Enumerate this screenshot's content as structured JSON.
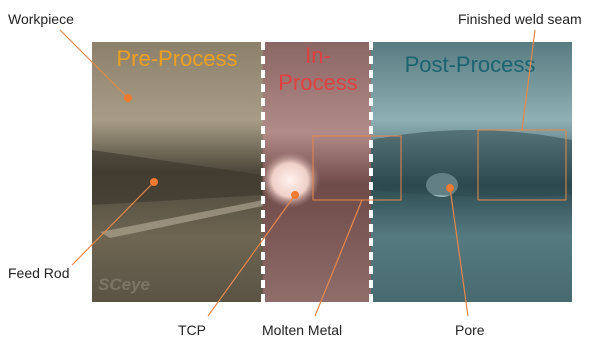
{
  "panels": [
    {
      "label": [
        "Pre-Process"
      ]
    },
    {
      "label": [
        "In-",
        "Process"
      ]
    },
    {
      "label": [
        "Post-Process"
      ]
    }
  ],
  "callouts": {
    "workpiece": "Workpiece",
    "finished_weld_seam": "Finished weld seam",
    "feed_rod": "Feed Rod",
    "tcp": "TCP",
    "molten_metal": "Molten Metal",
    "pore": "Pore"
  },
  "logo": "SCeye"
}
